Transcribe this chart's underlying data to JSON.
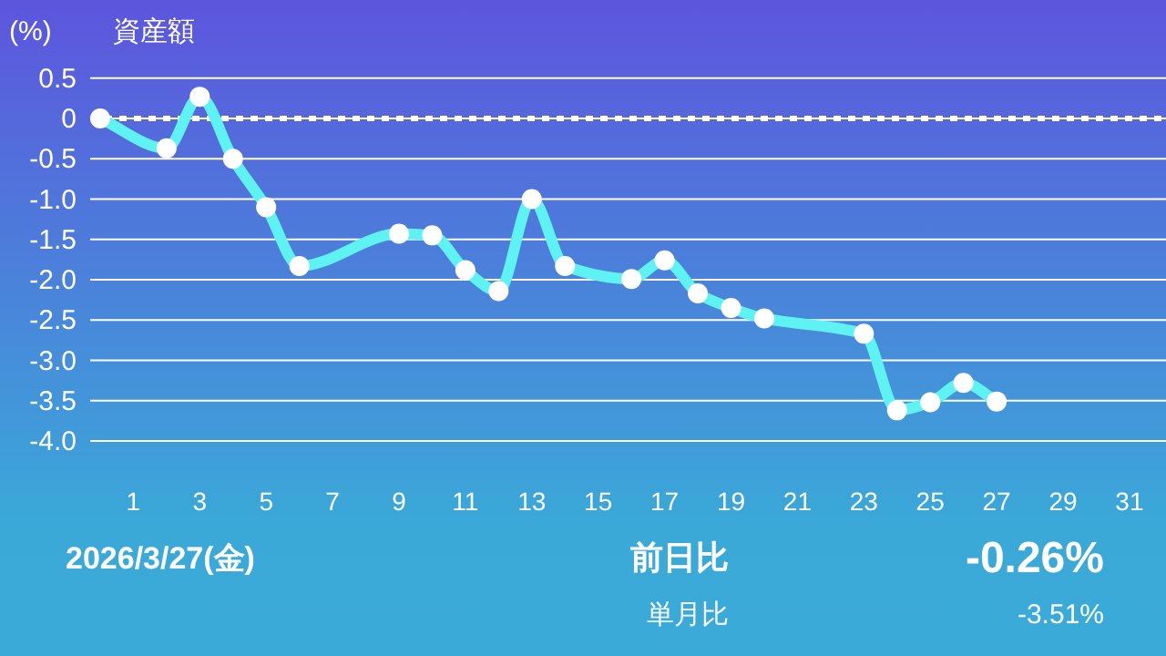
{
  "chart_data": {
    "type": "line",
    "title": "資産額",
    "ylabel": "(%)",
    "x": [
      0,
      2,
      3,
      4,
      5,
      6,
      9,
      10,
      11,
      12,
      13,
      14,
      16,
      17,
      18,
      19,
      20,
      23,
      24,
      25,
      26,
      27
    ],
    "series": [
      {
        "color": "#5ef2f2",
        "values": [
          0,
          -0.37,
          0.27,
          -0.5,
          -1.1,
          -1.83,
          -1.43,
          -1.45,
          -1.88,
          -2.14,
          -1.0,
          -1.83,
          -1.99,
          -1.76,
          -2.17,
          -2.35,
          -2.48,
          -2.67,
          -3.62,
          -3.52,
          -3.28,
          -3.51
        ]
      }
    ],
    "xlim": [
      -0.3,
      32.1
    ],
    "ylim": [
      -4,
      0.5
    ],
    "xticks": [
      1,
      3,
      5,
      7,
      9,
      11,
      13,
      15,
      17,
      19,
      21,
      23,
      25,
      27,
      29,
      31
    ],
    "yticks": [
      0.5,
      0,
      {
        "value": -0.5,
        "label": "-0.5"
      },
      {
        "value": -1,
        "label": "-1.0"
      },
      {
        "value": -1.5,
        "label": "-1.5"
      },
      {
        "value": -2,
        "label": "-2.0"
      },
      {
        "value": -2.5,
        "label": "-2.5"
      },
      {
        "value": -3,
        "label": "-3.0"
      },
      {
        "value": -3.5,
        "label": "-3.5"
      },
      {
        "value": -4,
        "label": "-4.0"
      }
    ],
    "grid": "y",
    "marker": "circle",
    "line_style": "solid",
    "ref_lines": [
      {
        "axis": "y",
        "value": 0,
        "color": "#ffffff",
        "line_style": "dotted"
      }
    ],
    "annotations": [
      "2026/3/27(金)",
      "前日比",
      "-0.26%",
      "単月比",
      "-3.51%"
    ]
  }
}
